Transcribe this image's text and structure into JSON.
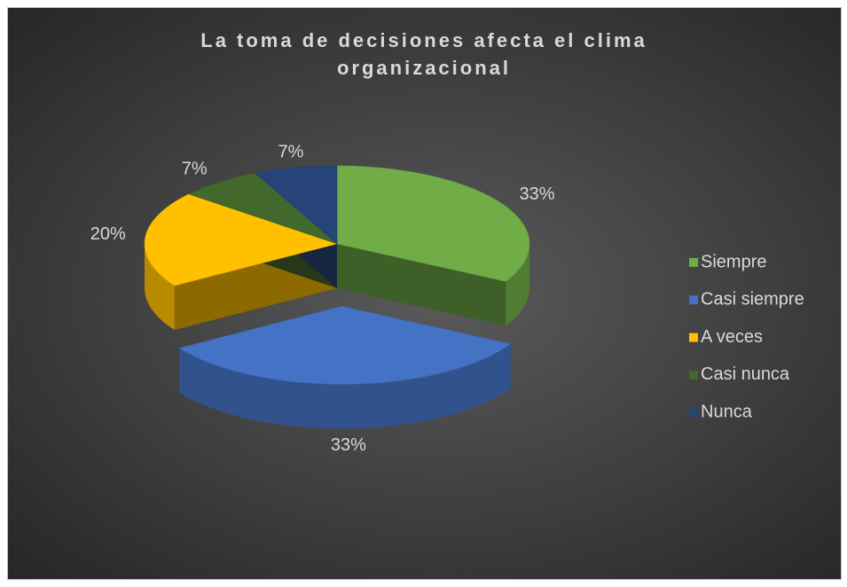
{
  "chart_data": {
    "type": "pie3d",
    "title": "La toma de decisiones afecta el clima organizacional",
    "categories": [
      "Siempre",
      "Casi siempre",
      "A veces",
      "Casi nunca",
      "Nunca"
    ],
    "values": [
      33,
      33,
      20,
      7,
      7
    ],
    "value_labels": [
      "33%",
      "33%",
      "20%",
      "7%",
      "7%"
    ],
    "colors": [
      "#70ad47",
      "#4472c4",
      "#ffc000",
      "#43682b",
      "#264478"
    ],
    "exploded": "Casi siempre",
    "legend": "right"
  }
}
